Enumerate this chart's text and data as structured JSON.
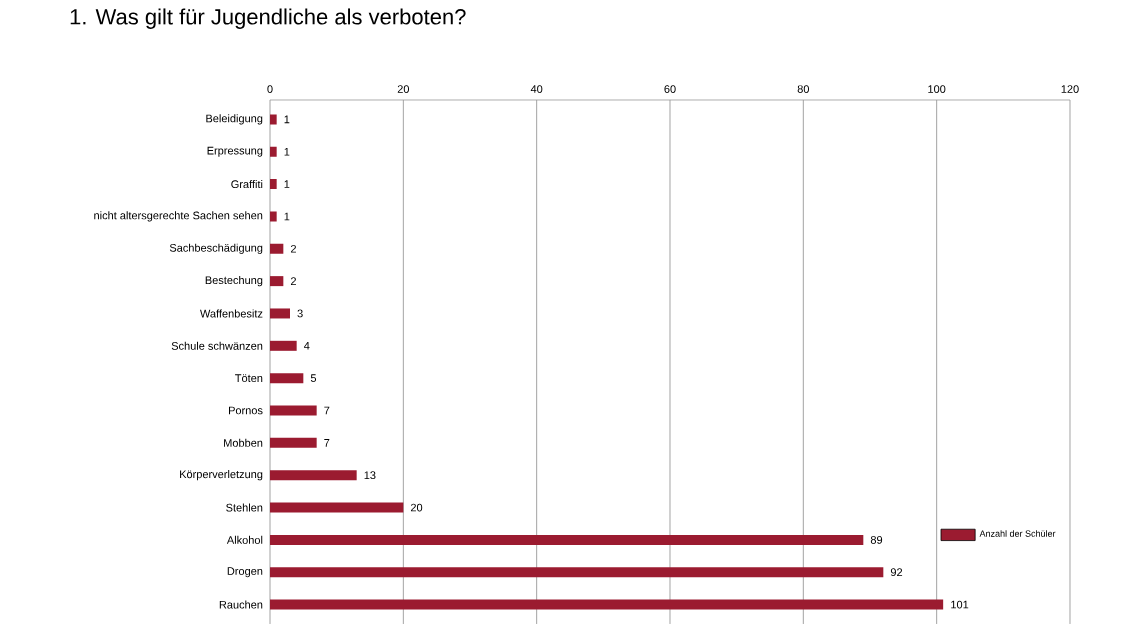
{
  "chart_data": {
    "type": "bar",
    "orientation": "horizontal",
    "title": "1.  Was gilt für Jugendliche als verboten?",
    "categories": [
      "Beleidigung",
      "Erpressung",
      "Graffiti",
      "nicht altersgerechte Sachen sehen",
      "Sachbeschädigung",
      "Bestechung",
      "Waffenbesitz",
      "Schule schwänzen",
      "Töten",
      "Pornos",
      "Mobben",
      "Körperverletzung",
      "Stehlen",
      "Alkohol",
      "Drogen",
      "Rauchen"
    ],
    "series": [
      {
        "name": "Anzahl der Schüler",
        "color": "#9b1b30",
        "values": [
          1,
          1,
          1,
          1,
          2,
          2,
          3,
          4,
          5,
          7,
          7,
          13,
          20,
          89,
          92,
          101
        ]
      }
    ],
    "xlim": [
      0,
      120
    ],
    "xticks": [
      0,
      20,
      40,
      60,
      80,
      100,
      120
    ],
    "grid": "x",
    "data_labels": true,
    "legend": "right"
  }
}
